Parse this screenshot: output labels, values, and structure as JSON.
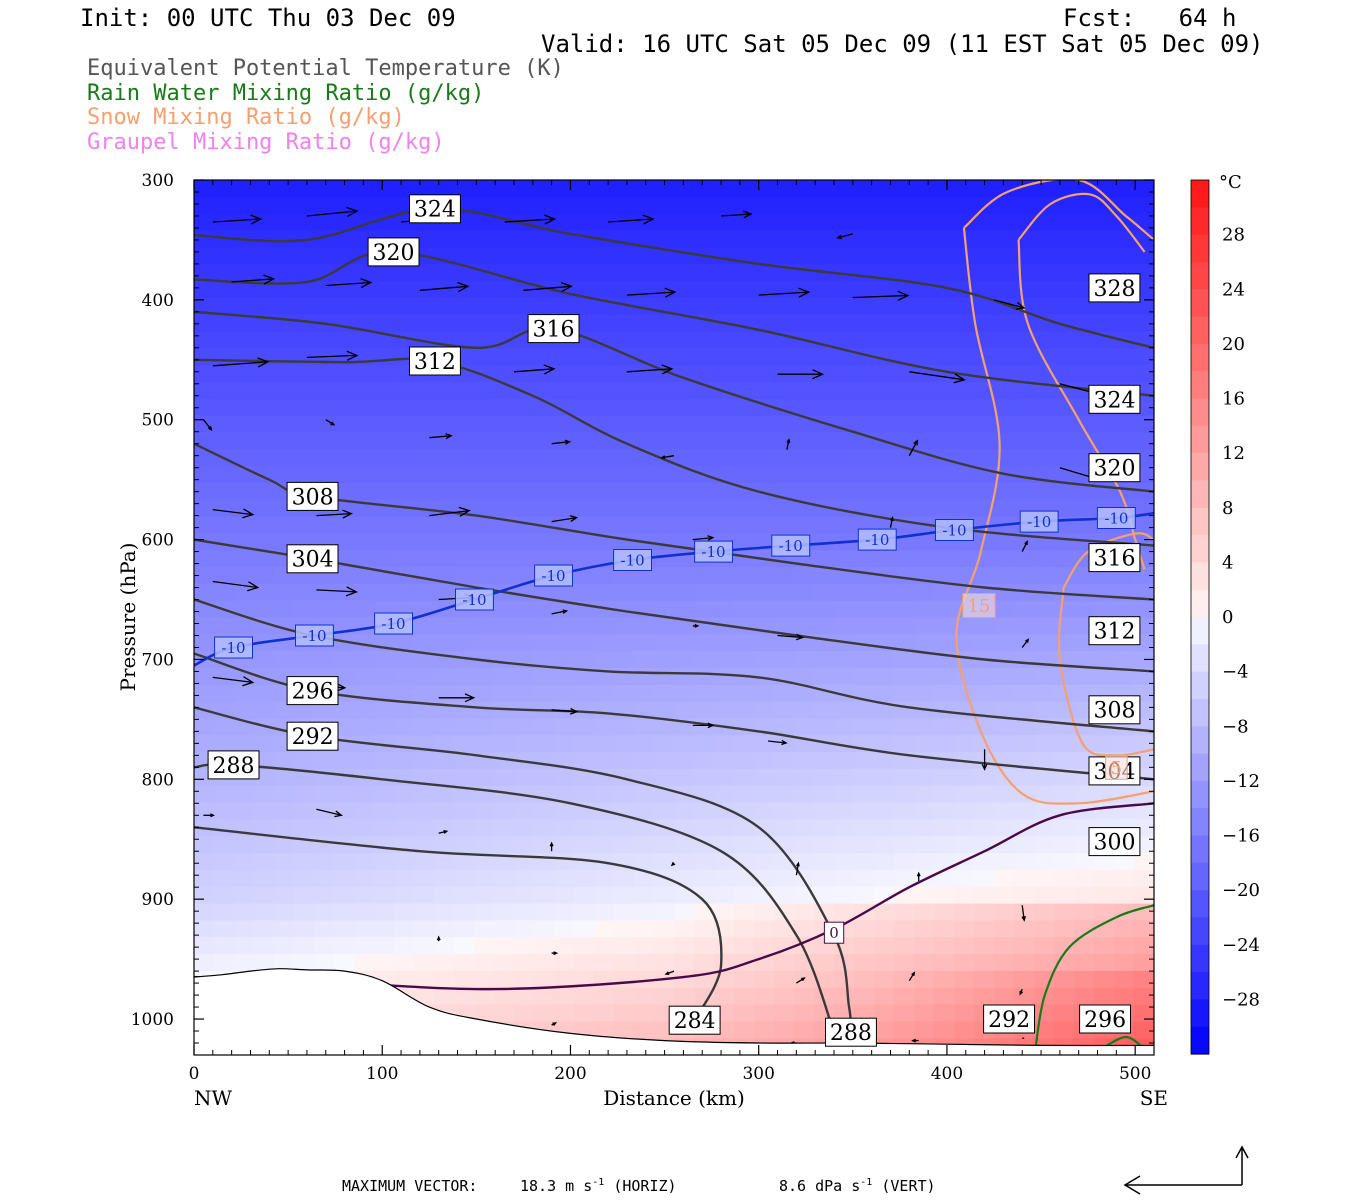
{
  "header": {
    "init": "Init: 00 UTC Thu 03 Dec 09",
    "fcst": "Fcst:   64 h",
    "valid": "Valid: 16 UTC Sat 05 Dec 09 (11 EST Sat 05 Dec 09)"
  },
  "legend": {
    "items": [
      {
        "label": "Equivalent Potential Temperature (K)",
        "color": "#555555"
      },
      {
        "label": "Rain Water Mixing Ratio (g/kg)",
        "color": "#1a7a1a"
      },
      {
        "label": "Snow Mixing Ratio (g/kg)",
        "color": "#f4a070"
      },
      {
        "label": "Graupel Mixing Ratio (g/kg)",
        "color": "#ee82ee"
      }
    ]
  },
  "chart_data": {
    "type": "cross-section",
    "x_axis": {
      "label": "Distance (km)",
      "range": [
        0,
        510
      ],
      "ticks": [
        0,
        100,
        200,
        300,
        400,
        500
      ],
      "left_end": "NW",
      "right_end": "SE"
    },
    "y_axis": {
      "label": "Pressure (hPa)",
      "range": [
        300,
        1030
      ],
      "scale": "inverted",
      "ticks": [
        300,
        400,
        500,
        600,
        700,
        800,
        900,
        1000
      ]
    },
    "colorbar": {
      "unit": "°C",
      "labels": [
        28,
        24,
        20,
        16,
        12,
        8,
        4,
        0,
        -4,
        -8,
        -12,
        -16,
        -20,
        -24,
        -28
      ],
      "range": [
        -32,
        32
      ]
    },
    "theta_e_contours": [
      {
        "value": 324,
        "label_at": [
          128,
          324
        ]
      },
      {
        "value": 320,
        "label_at": [
          106,
          360
        ]
      },
      {
        "value": 316,
        "label_at": [
          191,
          424
        ]
      },
      {
        "value": 312,
        "label_at": [
          128,
          451
        ]
      },
      {
        "value": 308,
        "label_at": [
          63,
          564
        ]
      },
      {
        "value": 304,
        "label_at": [
          63,
          616
        ]
      },
      {
        "value": 296,
        "label_at": [
          63,
          726
        ]
      },
      {
        "value": 292,
        "label_at": [
          63,
          764
        ]
      },
      {
        "value": 288,
        "label_at": [
          21,
          788
        ]
      },
      {
        "value": 284,
        "label_at": [
          266,
          1001
        ]
      },
      {
        "value": 288,
        "label_at": [
          349,
          1011
        ]
      },
      {
        "value": 292,
        "label_at": [
          433,
          1000
        ]
      },
      {
        "value": 296,
        "label_at": [
          484,
          1000
        ]
      },
      {
        "value": 300,
        "label_at": [
          489,
          852
        ]
      },
      {
        "value": 304,
        "label_at": [
          489,
          793
        ]
      },
      {
        "value": 308,
        "label_at": [
          489,
          742
        ]
      },
      {
        "value": 312,
        "label_at": [
          489,
          676
        ]
      },
      {
        "value": 316,
        "label_at": [
          489,
          615
        ]
      },
      {
        "value": 320,
        "label_at": [
          489,
          540
        ]
      },
      {
        "value": 324,
        "label_at": [
          489,
          483
        ]
      },
      {
        "value": 328,
        "label_at": [
          489,
          390
        ]
      }
    ],
    "isotherm_minus10": {
      "value": -10,
      "label_points_km": [
        21,
        64,
        106,
        149,
        191,
        233,
        276,
        317,
        363,
        404,
        449,
        490
      ]
    },
    "isotherm_zero": {
      "value": 0,
      "label": "0",
      "label_at_km": 340
    },
    "snow_labels": [
      {
        "value": "15",
        "x_km": 417
      },
      {
        "value": "5",
        "x_km": 490
      }
    ],
    "max_vector": {
      "title": "MAXIMUM VECTOR:",
      "horiz": "18.3 m s",
      "horiz_unit": "(HORIZ)",
      "vert": "8.6 dPa s",
      "vert_unit": "(VERT)",
      "exponent": "-1"
    }
  }
}
